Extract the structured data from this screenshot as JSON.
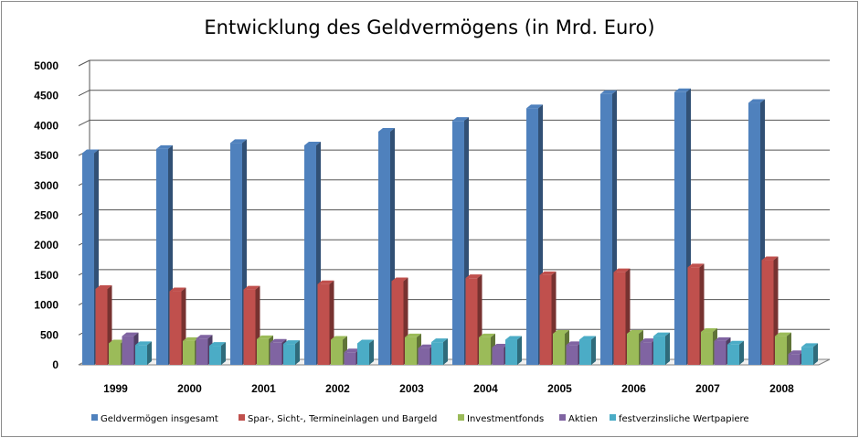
{
  "chart_data": {
    "type": "bar",
    "title": "Entwicklung des Geldvermögens (in Mrd. Euro)",
    "xlabel": "",
    "ylabel": "",
    "ylim": [
      0,
      5000
    ],
    "yticks": [
      "0",
      "500",
      "1000",
      "1500",
      "2000",
      "2500",
      "3000",
      "3500",
      "4000",
      "4500",
      "5000"
    ],
    "grid": true,
    "legend_position": "bottom",
    "categories": [
      "1999",
      "2000",
      "2001",
      "2002",
      "2003",
      "2004",
      "2005",
      "2006",
      "2007",
      "2008"
    ],
    "series": [
      {
        "name": "Geldvermögen insgesamt",
        "color": "#4f81bd",
        "values": [
          3540,
          3610,
          3710,
          3670,
          3900,
          4080,
          4290,
          4530,
          4560,
          4380
        ]
      },
      {
        "name": "Spar-, Sicht-, Termineinlagen und Bargeld",
        "color": "#c0504d",
        "values": [
          1270,
          1230,
          1260,
          1350,
          1400,
          1450,
          1500,
          1550,
          1630,
          1750
        ]
      },
      {
        "name": "Investmentfonds",
        "color": "#9bbb59",
        "values": [
          360,
          400,
          430,
          420,
          460,
          460,
          520,
          520,
          550,
          480
        ]
      },
      {
        "name": "Aktien",
        "color": "#8064a2",
        "values": [
          480,
          440,
          370,
          210,
          280,
          290,
          330,
          380,
          400,
          180
        ]
      },
      {
        "name": "festverzinsliche Wertpapiere",
        "color": "#4bacc6",
        "values": [
          330,
          320,
          350,
          360,
          380,
          420,
          420,
          480,
          340,
          300
        ]
      }
    ]
  }
}
